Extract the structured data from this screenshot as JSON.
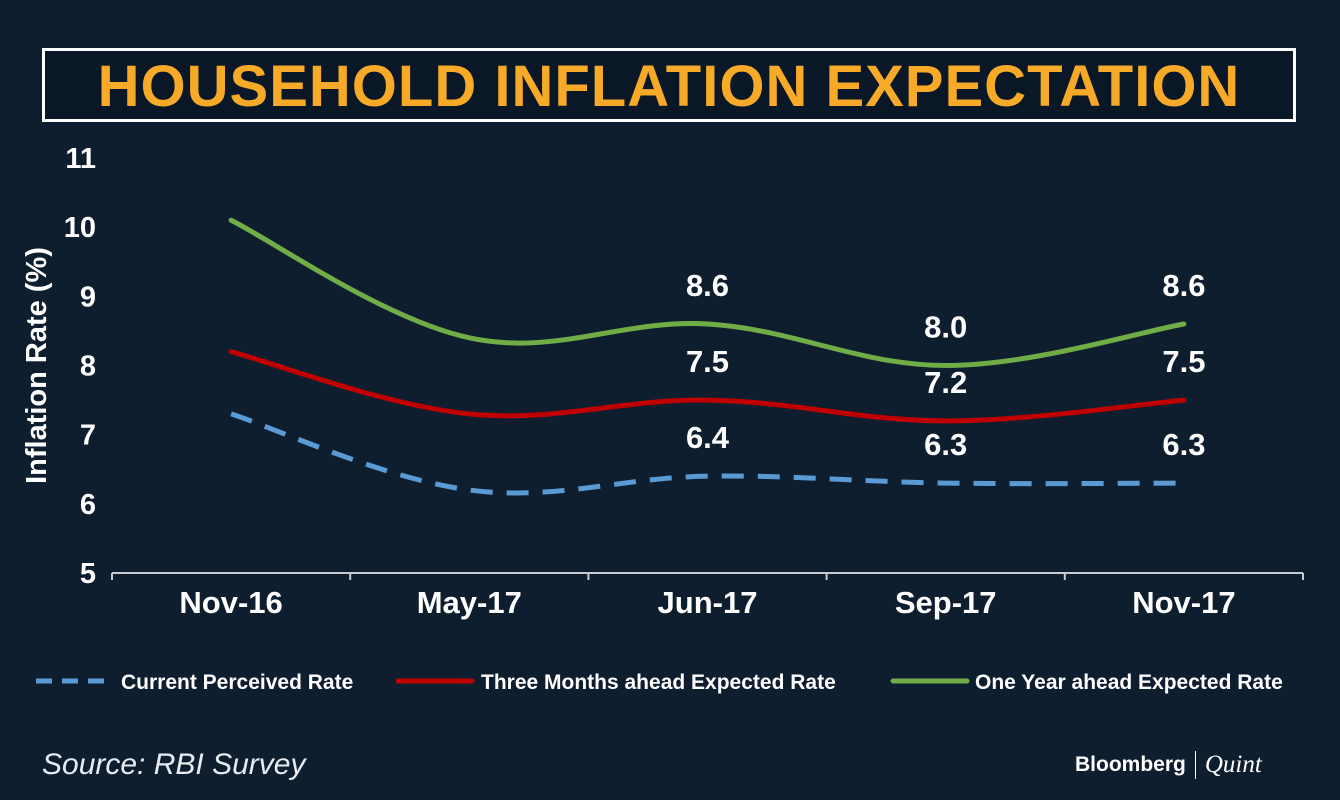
{
  "title": "HOUSEHOLD INFLATION EXPECTATION",
  "source": "Source: RBI Survey",
  "brand": {
    "name": "Bloomberg",
    "suffix": "Quint"
  },
  "colors": {
    "background": "#0f1e2f",
    "title": "#f7a928",
    "text": "#ffffff",
    "current": "#5b9bd5",
    "three_months": "#c00000",
    "one_year": "#70ad47"
  },
  "chart_data": {
    "type": "line",
    "title": "HOUSEHOLD INFLATION EXPECTATION",
    "xlabel": "",
    "ylabel": "Inflation Rate (%)",
    "ylim": [
      5,
      11
    ],
    "yticks": [
      "5",
      "6",
      "7",
      "8",
      "9",
      "10",
      "11"
    ],
    "categories": [
      "Nov-16",
      "May-17",
      "Jun-17",
      "Sep-17",
      "Nov-17"
    ],
    "legend_position": "bottom",
    "series": [
      {
        "name": "Current Perceived Rate",
        "color": "#5b9bd5",
        "dash": true,
        "values": [
          7.3,
          6.2,
          6.4,
          6.3,
          6.3
        ],
        "labels": [
          "",
          "",
          "6.4",
          "6.3",
          "6.3"
        ]
      },
      {
        "name": "Three Months ahead Expected Rate",
        "color": "#c00000",
        "dash": false,
        "values": [
          8.2,
          7.3,
          7.5,
          7.2,
          7.5
        ],
        "labels": [
          "",
          "",
          "7.5",
          "7.2",
          "7.5"
        ]
      },
      {
        "name": "One Year ahead Expected Rate",
        "color": "#70ad47",
        "dash": false,
        "values": [
          10.1,
          8.4,
          8.6,
          8.0,
          8.6
        ],
        "labels": [
          "",
          "",
          "8.6",
          "8.0",
          "8.6"
        ]
      }
    ]
  }
}
